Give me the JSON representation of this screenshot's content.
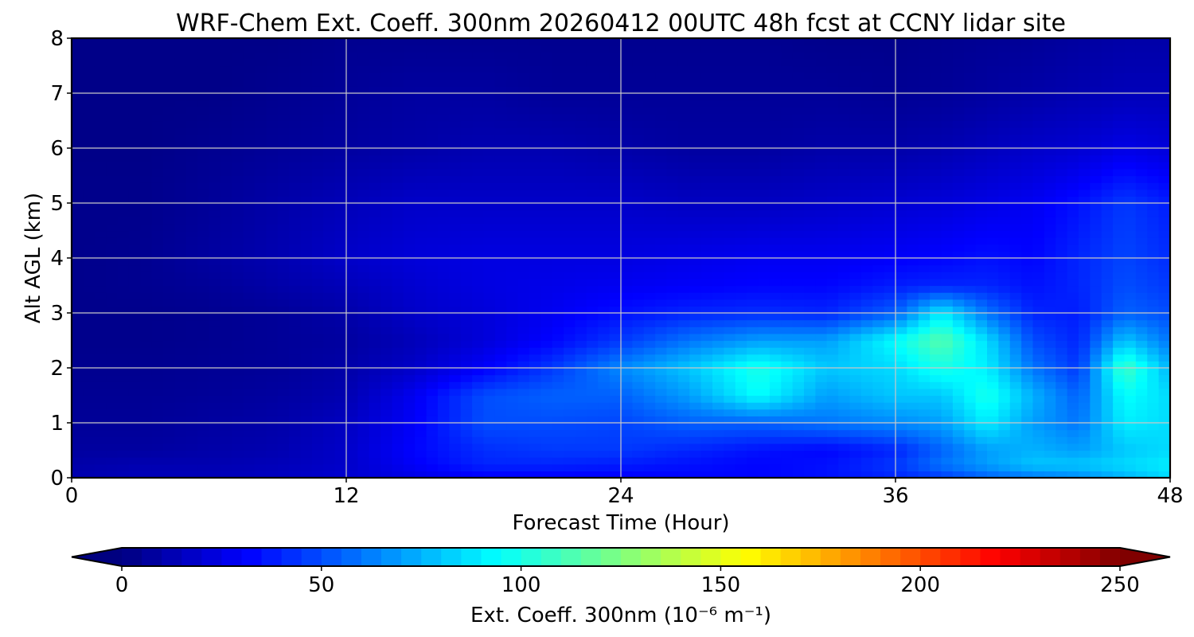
{
  "chart_data": {
    "type": "heatmap",
    "title": "WRF-Chem Ext. Coeff. 300nm  20260412 00UTC 48h fcst at CCNY lidar site",
    "xlabel": "Forecast Time (Hour)",
    "ylabel": "Alt AGL (km)",
    "xlim": [
      0,
      48
    ],
    "ylim": [
      0,
      8
    ],
    "x_ticks": [
      0,
      12,
      24,
      36,
      48
    ],
    "y_ticks": [
      0,
      1,
      2,
      3,
      4,
      5,
      6,
      7,
      8
    ],
    "grid": true,
    "x": [
      0,
      3,
      6,
      9,
      12,
      15,
      18,
      21,
      24,
      27,
      30,
      33,
      36,
      38,
      40,
      42,
      44,
      46,
      48
    ],
    "y": [
      0,
      0.25,
      0.5,
      1,
      1.5,
      2,
      2.5,
      3,
      3.5,
      4,
      5,
      6,
      7,
      8
    ],
    "z": [
      [
        12,
        14,
        14,
        16,
        20,
        25,
        30,
        30,
        30,
        32,
        32,
        35,
        40,
        45,
        55,
        60,
        65,
        75,
        85
      ],
      [
        10,
        12,
        12,
        14,
        18,
        30,
        40,
        40,
        38,
        35,
        32,
        35,
        45,
        60,
        70,
        80,
        80,
        85,
        90
      ],
      [
        8,
        8,
        10,
        12,
        18,
        32,
        42,
        45,
        45,
        40,
        35,
        32,
        40,
        55,
        70,
        75,
        70,
        80,
        85
      ],
      [
        6,
        6,
        8,
        10,
        16,
        30,
        50,
        50,
        48,
        55,
        55,
        60,
        65,
        70,
        90,
        70,
        60,
        90,
        85
      ],
      [
        5,
        5,
        6,
        8,
        12,
        28,
        50,
        55,
        55,
        70,
        95,
        70,
        80,
        80,
        100,
        75,
        55,
        95,
        85
      ],
      [
        4,
        4,
        5,
        6,
        10,
        18,
        30,
        45,
        65,
        80,
        100,
        80,
        85,
        100,
        90,
        60,
        45,
        110,
        75
      ],
      [
        3,
        3,
        4,
        6,
        8,
        14,
        22,
        32,
        45,
        60,
        70,
        70,
        95,
        115,
        85,
        50,
        40,
        80,
        60
      ],
      [
        3,
        3,
        4,
        6,
        10,
        18,
        22,
        28,
        35,
        40,
        42,
        40,
        55,
        90,
        60,
        40,
        38,
        55,
        50
      ],
      [
        3,
        4,
        6,
        10,
        14,
        20,
        24,
        26,
        28,
        30,
        32,
        32,
        38,
        40,
        40,
        35,
        40,
        50,
        45
      ],
      [
        3,
        4,
        8,
        12,
        18,
        22,
        24,
        24,
        24,
        26,
        28,
        28,
        30,
        32,
        35,
        32,
        40,
        48,
        42
      ],
      [
        3,
        3,
        6,
        10,
        14,
        18,
        18,
        18,
        18,
        16,
        16,
        18,
        20,
        22,
        25,
        28,
        35,
        45,
        38
      ],
      [
        2,
        2,
        4,
        6,
        8,
        10,
        12,
        12,
        10,
        8,
        8,
        10,
        10,
        12,
        15,
        18,
        20,
        25,
        22
      ],
      [
        2,
        2,
        2,
        4,
        6,
        8,
        8,
        6,
        6,
        6,
        6,
        6,
        5,
        6,
        8,
        10,
        12,
        14,
        14
      ],
      [
        2,
        2,
        2,
        2,
        4,
        4,
        4,
        4,
        4,
        4,
        4,
        3,
        3,
        4,
        5,
        6,
        8,
        10,
        10
      ]
    ],
    "colorbar": {
      "label": "Ext. Coeff. 300nm  (10⁻⁶ m⁻¹)",
      "min": 0,
      "max": 250,
      "ticks": [
        0,
        50,
        100,
        150,
        200,
        250
      ],
      "extend": "both",
      "colormap": "jet"
    }
  }
}
